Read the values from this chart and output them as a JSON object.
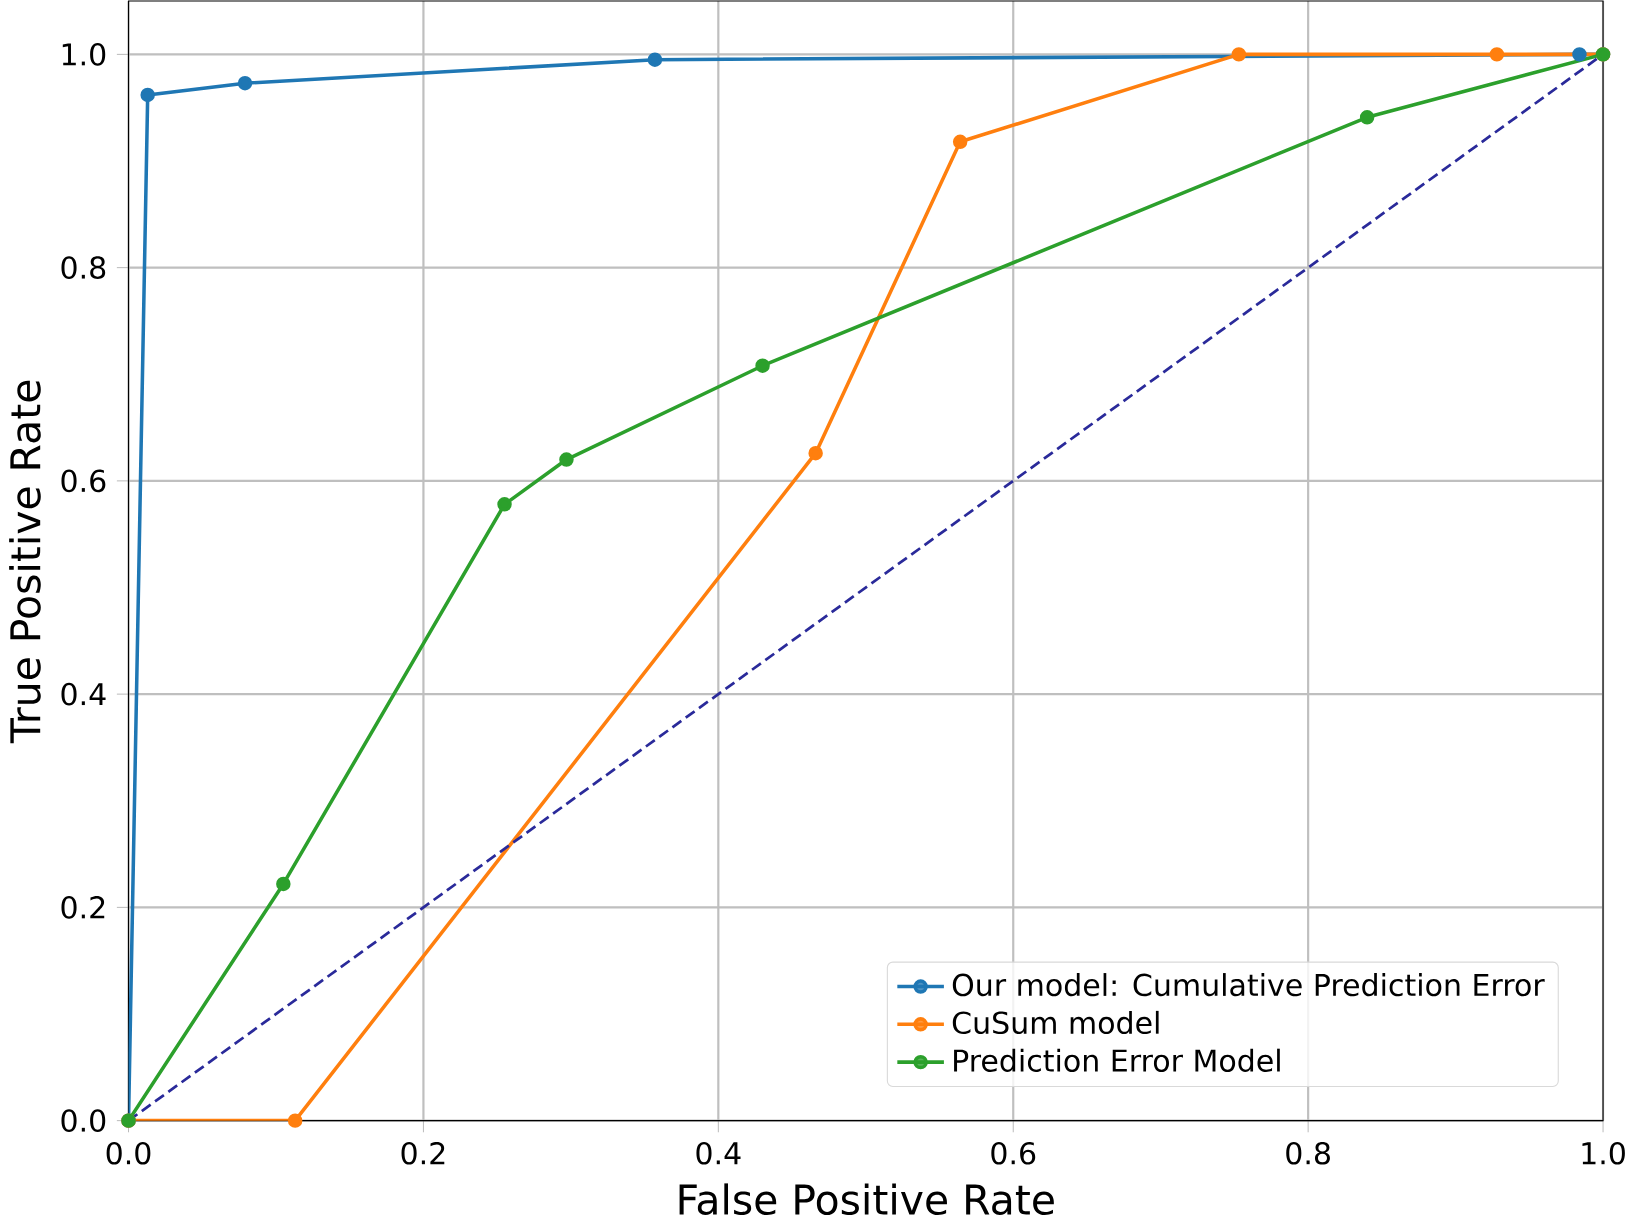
{
  "chart_data": {
    "type": "line",
    "xlabel": "False Positive Rate",
    "ylabel": "True Positive Rate",
    "xlim": [
      0,
      1
    ],
    "ylim": [
      0,
      1.05
    ],
    "xticks": [
      {
        "value": 0,
        "label": "0.0"
      },
      0.2,
      0.4,
      0.6,
      0.8,
      {
        "value": 1,
        "label": "1.0"
      }
    ],
    "yticks": [
      {
        "value": 0,
        "label": "0.0"
      },
      0.2,
      0.4,
      0.6,
      0.8,
      {
        "value": 1,
        "label": "1.0"
      }
    ],
    "grid": true,
    "legend": "bottom right",
    "marker": "circle",
    "series": [
      {
        "name": "Our model: Cumulative Prediction Error",
        "color": "#1f77b4",
        "x": [
          0,
          0.013,
          0.079,
          0.357,
          0.984,
          1
        ],
        "values": [
          0,
          0.962,
          0.973,
          0.995,
          1.0,
          1.0
        ]
      },
      {
        "name": "CuSum model",
        "color": "#ff7f0e",
        "x": [
          0,
          0.113,
          0.466,
          0.564,
          0.753,
          0.928,
          1
        ],
        "values": [
          0,
          0,
          0.626,
          0.918,
          1.0,
          1.0,
          1.0
        ]
      },
      {
        "name": "Prediction Error Model",
        "color": "#2ca02c",
        "x": [
          0,
          0.105,
          0.255,
          0.297,
          0.43,
          0.84,
          1
        ],
        "values": [
          0,
          0.222,
          0.578,
          0.62,
          0.708,
          0.941,
          1.0
        ]
      },
      {
        "color": "#2a2a9a",
        "x": [
          0,
          1
        ],
        "values": [
          0,
          1
        ],
        "marker": "none",
        "line_style": "dashed"
      }
    ]
  }
}
